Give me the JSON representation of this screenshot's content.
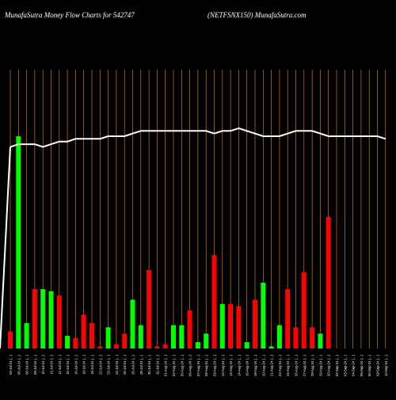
{
  "header": {
    "left": "MunafaSutra  Money Flow  Charts for 542747",
    "right": "(NETFSNX150) MunafaSutra.com"
  },
  "colors": {
    "background": "#000000",
    "up": "#00ff00",
    "down": "#ff0000",
    "grid": "#ff8c00",
    "line": "#ffffff",
    "text": "#ffffff"
  },
  "chart_data": {
    "type": "bar",
    "title": "",
    "xlabel": "",
    "ylabel": "",
    "grid": true,
    "categories": [
      "03-Jul-24 (...)",
      "05-Jul-24 (...)",
      "08-Jul-24 (...)",
      "09-Jul-24 (...)",
      "10-Jul-24 (...)",
      "11-Jul-24 (...)",
      "12-Jul-24 (...)",
      "15-Jul-24 (...)",
      "16-Jul-24 (...)",
      "18-Jul-24 (...)",
      "19-Jul-24 (...)",
      "22-Jul-24 (...)",
      "23-Jul-24 (...)",
      "24-Jul-24 (...)",
      "25-Jul-24 (...)",
      "26-Jul-24 (...)",
      "29-Jul-24 (...)",
      "30-Jul-24 (...)",
      "31-Jul-24 (...)",
      "01-Aug-24 (...)",
      "02-Aug-24 (...)",
      "05-Aug-24 (...)",
      "06-Aug-24 (...)",
      "07-Aug-24 (...)",
      "08-Aug-24 (...)",
      "09-Aug-24 (...)",
      "12-Aug-24 (...)",
      "13-Aug-24 (...)",
      "14-Aug-24 (...)",
      "16-Aug-24 (...)",
      "19-Aug-24 (...)",
      "20-Aug-24 (...)",
      "21-Aug-24 (...)",
      "22-Aug-24 (...)",
      "23-Aug-24 (...)",
      "26-Aug-24 (...)",
      "27-Aug-24 (...)",
      "28-Aug-24 (...)",
      "29-Aug-24 (...)",
      "30-Aug-24 (...)",
      "02-Sep-24 (...)",
      "03-Sep-24 (...)",
      "04-Sep-24 (...)",
      "05-Sep-24 (...)",
      "06-Sep-24 (...)",
      "09-Sep-24 (...)",
      "10-Sep-24 (...)"
    ],
    "values": [
      8,
      100,
      12,
      28,
      28,
      27,
      25,
      6,
      5,
      16,
      12,
      1,
      10,
      2,
      7,
      23,
      11,
      37,
      1,
      2,
      11,
      11,
      18,
      3,
      7,
      44,
      21,
      21,
      20,
      3,
      23,
      31,
      1,
      11,
      28,
      10,
      36,
      10,
      7,
      62,
      0,
      0,
      0,
      0,
      0,
      0,
      0
    ],
    "directions": [
      "down",
      "up",
      "up",
      "down",
      "up",
      "up",
      "down",
      "up",
      "down",
      "down",
      "down",
      "down",
      "up",
      "down",
      "down",
      "up",
      "up",
      "down",
      "down",
      "down",
      "up",
      "up",
      "down",
      "up",
      "up",
      "down",
      "up",
      "down",
      "down",
      "up",
      "down",
      "up",
      "up",
      "up",
      "down",
      "down",
      "down",
      "down",
      "up",
      "down",
      "up",
      "up",
      "up",
      "up",
      "up",
      "up",
      "up"
    ],
    "line": [
      76,
      77,
      77,
      77,
      76,
      77,
      78,
      78,
      79,
      79,
      79,
      79,
      80,
      80,
      80,
      81,
      82,
      82,
      82,
      82,
      82,
      82,
      82,
      82,
      82,
      81,
      82,
      82,
      83,
      82,
      81,
      80,
      80,
      80,
      81,
      82,
      82,
      82,
      81,
      80,
      80,
      80,
      80,
      80,
      80,
      80,
      79
    ]
  }
}
